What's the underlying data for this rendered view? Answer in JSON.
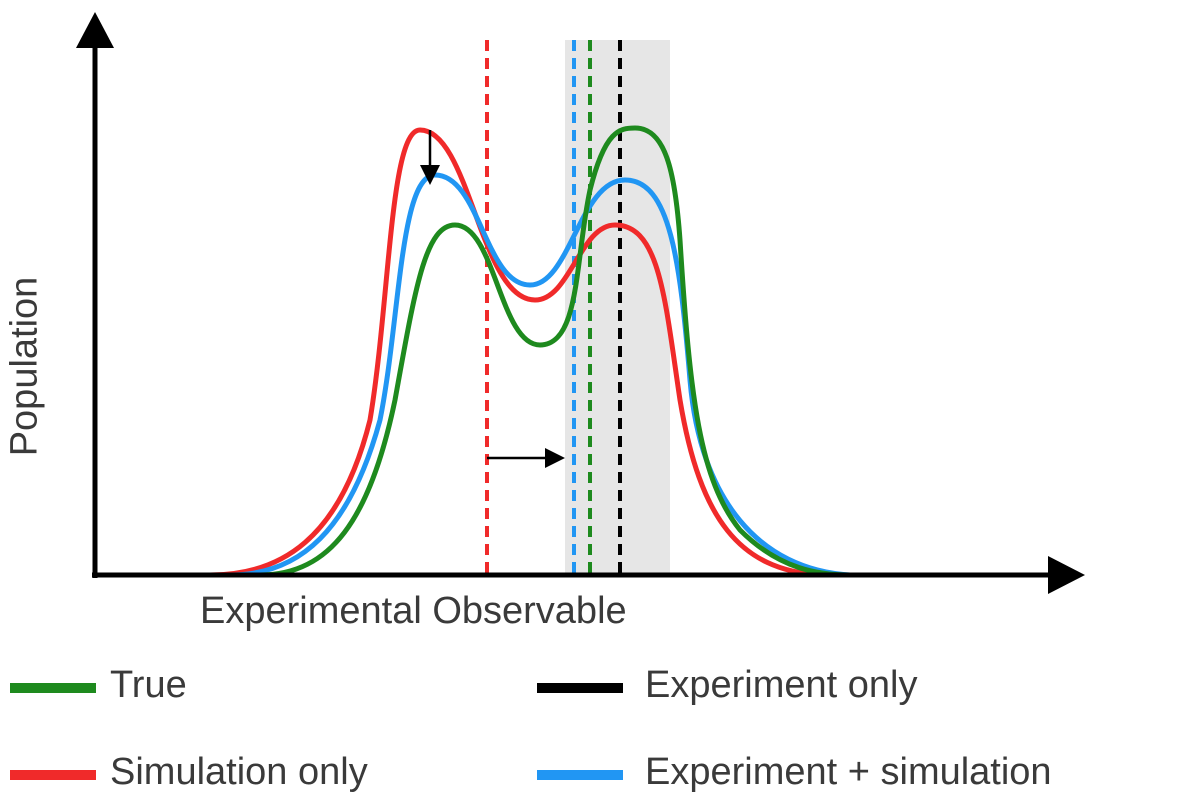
{
  "axes": {
    "x_label": "Experimental Observable",
    "y_label": "Population"
  },
  "colors": {
    "true": "#1e8a1e",
    "simulation_only": "#f02a2a",
    "experiment_only": "#000000",
    "experiment_simulation": "#2196f3",
    "uncertainty_band": "#e6e6e6"
  },
  "legend": [
    {
      "label": "True",
      "color": "#1e8a1e"
    },
    {
      "label": "Experiment only",
      "color": "#000000"
    },
    {
      "label": "Simulation only",
      "color": "#f02a2a"
    },
    {
      "label": "Experiment + simulation",
      "color": "#2196f3"
    }
  ]
}
